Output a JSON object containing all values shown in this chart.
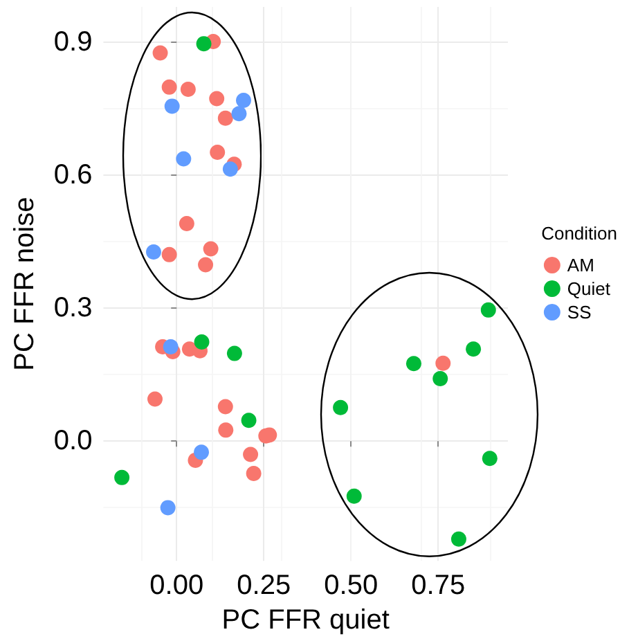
{
  "chart_data": {
    "type": "scatter",
    "xlabel": "PC FFR quiet",
    "ylabel": "PC FFR noise",
    "legend_title": "Condition",
    "legend": "right",
    "grid": true,
    "marker": "circle",
    "xlim": [
      -0.21,
      0.95
    ],
    "ylim": [
      -0.27,
      0.98
    ],
    "xticks": [
      {
        "value": 0,
        "label": "0.00"
      },
      {
        "value": 0.25,
        "label": "0.25"
      },
      {
        "value": 0.5,
        "label": "0.50"
      },
      {
        "value": 0.75,
        "label": "0.75"
      }
    ],
    "yticks": [
      {
        "value": 0,
        "label": "0.0"
      },
      {
        "value": 0.3,
        "label": "0.3"
      },
      {
        "value": 0.6,
        "label": "0.6"
      },
      {
        "value": 0.9,
        "label": "0.9"
      }
    ],
    "series": [
      {
        "name": "AM",
        "color": "#f8766d",
        "x": [
          -0.047,
          0.105,
          -0.021,
          0.033,
          0.115,
          0.14,
          0.117,
          0.165,
          0.029,
          -0.021,
          0.098,
          0.083,
          -0.04,
          -0.011,
          0.037,
          0.067,
          -0.062,
          0.14,
          0.141,
          0.256,
          0.266,
          0.054,
          0.212,
          0.221,
          0.764
        ],
        "values": [
          0.876,
          0.902,
          0.799,
          0.794,
          0.773,
          0.729,
          0.652,
          0.625,
          0.491,
          0.421,
          0.434,
          0.398,
          0.213,
          0.202,
          0.208,
          0.204,
          0.095,
          0.078,
          0.025,
          0.012,
          0.014,
          -0.043,
          -0.03,
          -0.073,
          0.176
        ]
      },
      {
        "name": "Quiet",
        "color": "#00ba38",
        "x": [
          0.078,
          0.072,
          0.166,
          0.207,
          -0.157,
          0.894,
          0.851,
          0.68,
          0.756,
          0.47,
          0.898,
          0.509,
          0.809
        ],
        "values": [
          0.897,
          0.224,
          0.198,
          0.047,
          -0.082,
          0.296,
          0.208,
          0.175,
          0.141,
          0.076,
          -0.039,
          -0.124,
          -0.221
        ]
      },
      {
        "name": "SS",
        "color": "#619cff",
        "x": [
          -0.013,
          0.192,
          0.179,
          0.02,
          0.154,
          -0.066,
          -0.017,
          0.071,
          -0.025
        ],
        "values": [
          0.756,
          0.769,
          0.739,
          0.637,
          0.614,
          0.427,
          0.213,
          -0.025,
          -0.15
        ]
      }
    ]
  }
}
